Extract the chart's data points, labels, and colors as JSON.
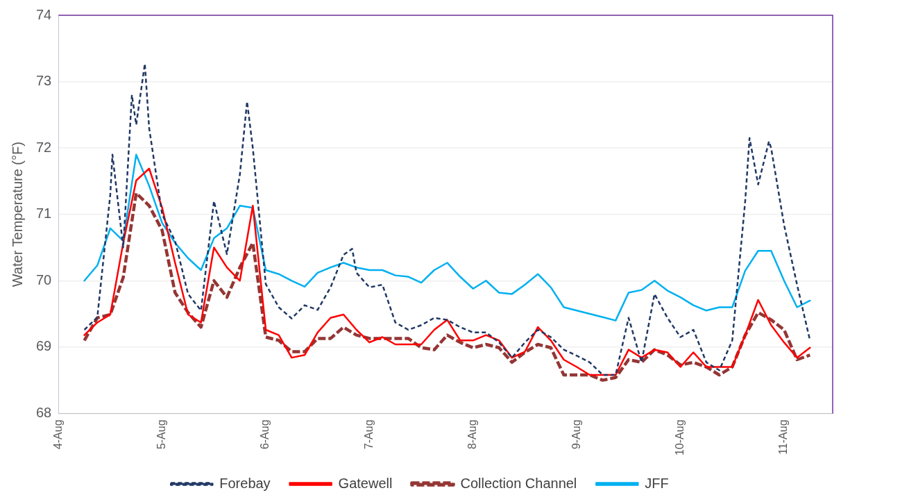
{
  "chart_data": {
    "type": "line",
    "ylabel": "Water Temperature (°F)",
    "x": [
      "--08-04T06:00",
      "--08-04T09:00",
      "--08-04T12:00",
      "--08-04T15:00",
      "--08-04T18:00",
      "--08-04T21:00",
      "--08-05T00:00",
      "--08-05T03:00",
      "--08-05T06:00",
      "--08-05T09:00",
      "--08-05T12:00",
      "--08-05T15:00",
      "--08-05T18:00",
      "--08-05T21:00",
      "--08-06T00:00",
      "--08-06T03:00",
      "--08-06T06:00",
      "--08-06T09:00",
      "--08-06T12:00",
      "--08-06T15:00",
      "--08-06T18:00",
      "--08-06T21:00",
      "--08-07T00:00",
      "--08-07T03:00",
      "--08-07T06:00",
      "--08-07T09:00",
      "--08-07T12:00",
      "--08-07T15:00",
      "--08-07T18:00",
      "--08-07T21:00",
      "--08-08T00:00",
      "--08-08T03:00",
      "--08-08T06:00",
      "--08-08T09:00",
      "--08-08T12:00",
      "--08-08T15:00",
      "--08-08T18:00",
      "--08-08T21:00",
      "--08-09T00:00",
      "--08-09T03:00",
      "--08-09T06:00",
      "--08-09T09:00",
      "--08-09T12:00",
      "--08-09T15:00",
      "--08-09T18:00",
      "--08-09T21:00",
      "--08-10T00:00",
      "--08-10T03:00",
      "--08-10T06:00",
      "--08-10T09:00",
      "--08-10T12:00",
      "--08-10T15:00",
      "--08-10T18:00",
      "--08-10T21:00",
      "--08-11T00:00",
      "--08-11T03:00",
      "--08-11T06:00"
    ],
    "series": [
      {
        "name": "Forebay",
        "color": "#203864",
        "line_style": "dashed",
        "x": [
          "--08-04T06:00",
          "--08-04T09:00",
          "--08-04T12:00",
          "--08-04T12:30",
          "--08-04T15:00",
          "--08-04T17:00",
          "--08-04T18:00",
          "--08-04T20:00",
          "--08-04T21:00",
          "--08-05T00:00",
          "--08-05T03:00",
          "--08-05T06:00",
          "--08-05T09:00",
          "--08-05T12:00",
          "--08-05T15:00",
          "--08-05T18:00",
          "--08-05T19:40",
          "--08-05T21:00",
          "--08-06T00:00",
          "--08-06T03:00",
          "--08-06T06:00",
          "--08-06T09:00",
          "--08-06T12:00",
          "--08-06T15:00",
          "--08-06T18:00",
          "--08-06T20:00",
          "--08-06T21:00",
          "--08-07T00:00",
          "--08-07T03:00",
          "--08-07T06:00",
          "--08-07T09:00",
          "--08-07T12:00",
          "--08-07T15:00",
          "--08-07T18:00",
          "--08-07T21:00",
          "--08-08T00:00",
          "--08-08T03:00",
          "--08-08T06:00",
          "--08-08T09:00",
          "--08-08T12:00",
          "--08-08T15:00",
          "--08-08T18:00",
          "--08-08T21:00",
          "--08-09T00:00",
          "--08-09T03:00",
          "--08-09T06:00",
          "--08-09T09:00",
          "--08-09T12:00",
          "--08-09T15:00",
          "--08-09T18:00",
          "--08-09T21:00",
          "--08-10T00:00",
          "--08-10T03:00",
          "--08-10T06:00",
          "--08-10T09:00",
          "--08-10T12:00",
          "--08-10T15:00",
          "--08-10T16:00",
          "--08-10T18:00",
          "--08-10T20:30",
          "--08-10T21:00",
          "--08-11T00:00",
          "--08-11T03:00",
          "--08-11T06:00"
        ],
        "values": [
          69.26,
          69.45,
          71.3,
          71.9,
          70.5,
          72.8,
          72.35,
          73.27,
          72.3,
          71.0,
          70.6,
          69.8,
          69.55,
          71.2,
          70.4,
          71.6,
          72.7,
          72.0,
          69.95,
          69.6,
          69.43,
          69.63,
          69.56,
          69.9,
          70.39,
          70.48,
          70.12,
          69.9,
          69.94,
          69.37,
          69.26,
          69.33,
          69.44,
          69.41,
          69.3,
          69.22,
          69.22,
          69.07,
          68.84,
          69.07,
          69.26,
          69.15,
          68.96,
          68.87,
          68.77,
          68.58,
          68.58,
          69.44,
          68.77,
          69.8,
          69.44,
          69.15,
          69.26,
          68.77,
          68.65,
          69.1,
          71.2,
          72.15,
          71.45,
          72.1,
          72.0,
          70.84,
          69.94,
          69.1
        ]
      },
      {
        "name": "Gatewell",
        "color": "#ff0000",
        "line_style": "solid",
        "values": [
          69.18,
          69.37,
          69.49,
          70.57,
          71.51,
          71.69,
          71.1,
          70.27,
          69.49,
          69.37,
          70.5,
          70.2,
          70.0,
          71.13,
          69.26,
          69.18,
          68.84,
          68.88,
          69.22,
          69.44,
          69.49,
          69.26,
          69.07,
          69.15,
          69.04,
          69.04,
          69.04,
          69.26,
          69.41,
          69.1,
          69.1,
          69.18,
          69.1,
          68.84,
          68.93,
          69.3,
          69.1,
          68.81,
          68.7,
          68.58,
          68.58,
          68.58,
          68.96,
          68.84,
          68.96,
          68.92,
          68.7,
          68.92,
          68.7,
          68.7,
          68.7,
          69.18,
          69.71,
          69.33,
          69.07,
          68.84,
          68.99
        ]
      },
      {
        "name": "Collection Channel",
        "color": "#943634",
        "line_style": "dashed",
        "values": [
          69.1,
          69.44,
          69.49,
          70.05,
          71.32,
          71.13,
          70.76,
          69.82,
          69.52,
          69.3,
          70.0,
          69.75,
          70.2,
          70.57,
          69.15,
          69.1,
          68.93,
          68.93,
          69.13,
          69.13,
          69.3,
          69.18,
          69.13,
          69.13,
          69.13,
          69.13,
          68.99,
          68.96,
          69.18,
          69.07,
          68.99,
          69.04,
          68.99,
          68.77,
          68.92,
          69.04,
          68.99,
          68.58,
          68.58,
          68.58,
          68.5,
          68.54,
          68.81,
          68.77,
          68.96,
          68.88,
          68.73,
          68.77,
          68.7,
          68.58,
          68.7,
          69.18,
          69.52,
          69.41,
          69.26,
          68.81,
          68.88
        ]
      },
      {
        "name": "JFF",
        "color": "#00b0f0",
        "line_style": "solid",
        "values": [
          70.0,
          70.23,
          70.79,
          70.6,
          71.9,
          71.43,
          70.87,
          70.57,
          70.34,
          70.16,
          70.64,
          70.79,
          71.13,
          71.1,
          70.16,
          70.1,
          70.0,
          69.91,
          70.12,
          70.2,
          70.27,
          70.2,
          70.16,
          70.16,
          70.08,
          70.06,
          69.97,
          70.16,
          70.27,
          70.06,
          69.88,
          70.0,
          69.82,
          69.8,
          69.94,
          70.1,
          69.9,
          69.6,
          69.55,
          69.5,
          69.45,
          69.4,
          69.82,
          69.86,
          70.0,
          69.85,
          69.75,
          69.63,
          69.55,
          69.6,
          69.6,
          70.15,
          70.45,
          70.45,
          70.0,
          69.6,
          69.7
        ]
      }
    ],
    "xlim": [
      "--08-04",
      "--08-11T11:15"
    ],
    "xticks": [
      {
        "value": "--08-04",
        "label": "4-Aug"
      },
      {
        "value": "--08-05",
        "label": "5-Aug"
      },
      {
        "value": "--08-06",
        "label": "6-Aug"
      },
      {
        "value": "--08-07",
        "label": "7-Aug"
      },
      {
        "value": "--08-08",
        "label": "8-Aug"
      },
      {
        "value": "--08-09",
        "label": "9-Aug"
      },
      {
        "value": "--08-10",
        "label": "10-Aug"
      },
      {
        "value": "--08-11",
        "label": "11-Aug"
      }
    ],
    "ylim": [
      68,
      74
    ],
    "yticks": [
      68,
      69,
      70,
      71,
      72,
      73,
      74
    ],
    "grid": "y",
    "legend": "bottom",
    "marker": "none"
  }
}
